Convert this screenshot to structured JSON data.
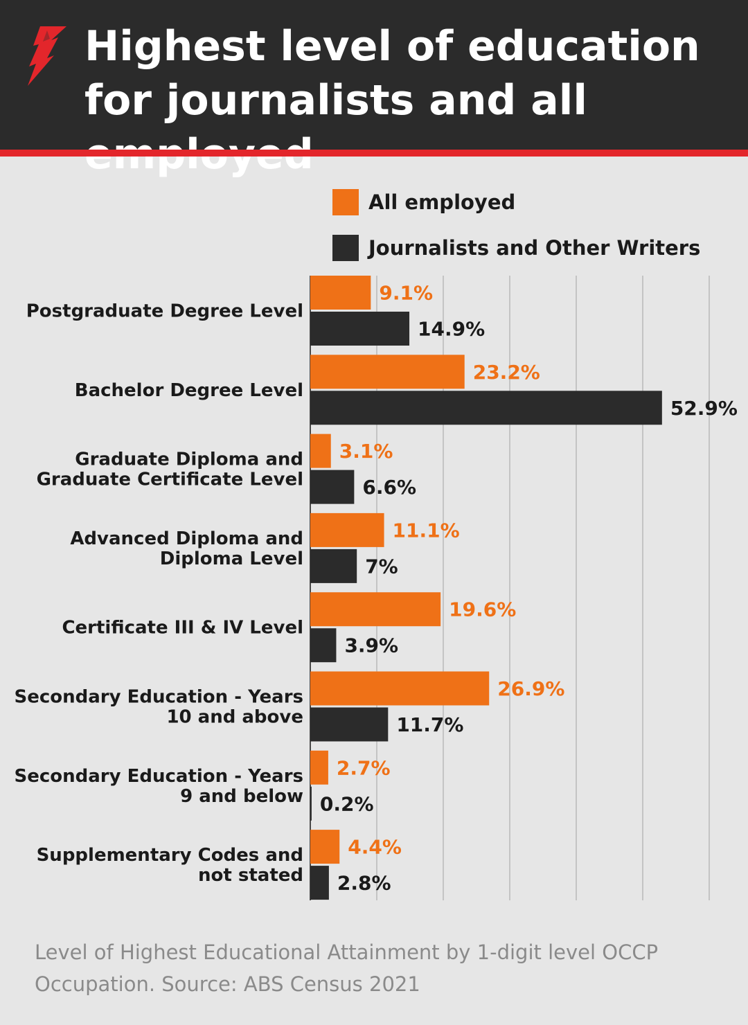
{
  "header": {
    "title": "Highest level of education for journalists and all employed",
    "logo_name": "sbs-logo-icon"
  },
  "colors": {
    "all_employed": "#ef7117",
    "journalists": "#2b2b2b",
    "header_bg": "#2b2b2b",
    "accent_stripe": "#e3262b",
    "background": "#e6e6e6",
    "grid": "#b9b9b9"
  },
  "legend": [
    {
      "label": "All employed",
      "color": "#ef7117"
    },
    {
      "label": "Journalists and Other Writers",
      "color": "#2b2b2b"
    }
  ],
  "chart_data": {
    "type": "bar",
    "orientation": "horizontal",
    "title": "Highest level of education for journalists and all employed",
    "categories": [
      [
        "Postgraduate Degree Level"
      ],
      [
        "Bachelor Degree Level"
      ],
      [
        "Graduate Diploma and",
        "Graduate Certificate Level"
      ],
      [
        "Advanced Diploma and",
        "Diploma Level"
      ],
      [
        "Certificate III & IV Level"
      ],
      [
        "Secondary Education - Years",
        "10 and above"
      ],
      [
        "Secondary Education - Years",
        "9 and below"
      ],
      [
        "Supplementary Codes and",
        "not stated"
      ]
    ],
    "series": [
      {
        "name": "All employed",
        "values": [
          9.1,
          23.2,
          3.1,
          11.1,
          19.6,
          26.9,
          2.7,
          4.4
        ],
        "labels": [
          "9.1%",
          "23.2%",
          "3.1%",
          "11.1%",
          "19.6%",
          "26.9%",
          "2.7%",
          "4.4%"
        ]
      },
      {
        "name": "Journalists and Other Writers",
        "values": [
          14.9,
          52.9,
          6.6,
          7,
          3.9,
          11.7,
          0.2,
          2.8
        ],
        "labels": [
          "14.9%",
          "52.9%",
          "6.6%",
          "7%",
          "3.9%",
          "11.7%",
          "0.2%",
          "2.8%"
        ]
      }
    ],
    "xlim": [
      0,
      60
    ],
    "grid": true,
    "legend_position": "top"
  },
  "footer": {
    "note": "Level of Highest Educational Attainment by 1-digit level OCCP Occupation. Source: ABS Census 2021"
  }
}
